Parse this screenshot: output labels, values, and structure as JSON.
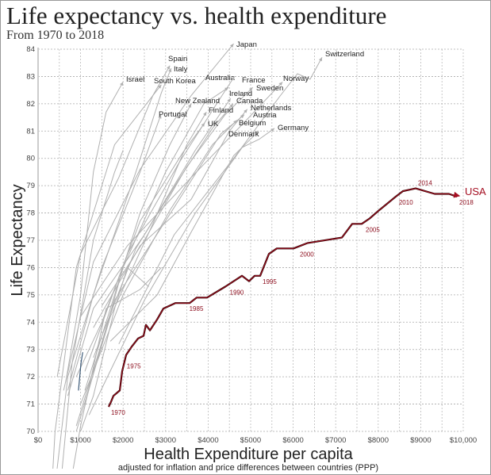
{
  "chart_data": {
    "type": "line",
    "title": "Life expectancy vs. health expenditure",
    "subtitle": "From 1970 to 2018",
    "xlabel": "Health Expenditure per capita",
    "xlabel_sub": "adjusted for inflation and price differences between countries (PPP)",
    "ylabel": "Life Expectancy",
    "xlim": [
      0,
      10000
    ],
    "ylim": [
      70,
      84
    ],
    "x_ticks": [
      "$0",
      "$1000",
      "$2000",
      "$3000",
      "$4000",
      "$5000",
      "$6000",
      "$7000",
      "$8000",
      "$9000",
      "$10,000"
    ],
    "y_ticks": [
      "70",
      "71",
      "72",
      "73",
      "74",
      "75",
      "76",
      "77",
      "78",
      "79",
      "80",
      "81",
      "82",
      "83",
      "84"
    ],
    "grid": true,
    "colors": {
      "highlight": "#a50f22",
      "others": "#b0b0b0",
      "blue": "#3c5a78"
    },
    "highlight": {
      "name": "USA",
      "points": [
        [
          1660,
          70.9
        ],
        [
          1720,
          71.1
        ],
        [
          1772,
          71.3
        ],
        [
          1922,
          71.5
        ],
        [
          1978,
          72.2
        ],
        [
          2071,
          72.8
        ],
        [
          2200,
          73.1
        ],
        [
          2351,
          73.4
        ],
        [
          2481,
          73.5
        ],
        [
          2537,
          73.9
        ],
        [
          2631,
          73.7
        ],
        [
          2800,
          74.1
        ],
        [
          2948,
          74.5
        ],
        [
          3228,
          74.7
        ],
        [
          3563,
          74.7
        ],
        [
          3731,
          74.9
        ],
        [
          3974,
          74.9
        ],
        [
          4403,
          75.3
        ],
        [
          4795,
          75.7
        ],
        [
          4963,
          75.5
        ],
        [
          5093,
          75.7
        ],
        [
          5224,
          75.7
        ],
        [
          5430,
          76.5
        ],
        [
          5616,
          76.7
        ],
        [
          6007,
          76.7
        ],
        [
          6343,
          76.9
        ],
        [
          7146,
          77.1
        ],
        [
          7388,
          77.6
        ],
        [
          7612,
          77.6
        ],
        [
          7799,
          77.8
        ],
        [
          8022,
          78.1
        ],
        [
          8414,
          78.6
        ],
        [
          8582,
          78.8
        ],
        [
          8881,
          78.9
        ],
        [
          9328,
          78.7
        ],
        [
          9664,
          78.7
        ],
        [
          9851,
          78.6
        ]
      ],
      "year_labels": [
        {
          "year": "1970",
          "x": 1660,
          "y": 70.9
        },
        {
          "year": "1975",
          "x": 2030,
          "y": 72.6
        },
        {
          "year": "1985",
          "x": 3500,
          "y": 74.7
        },
        {
          "year": "1990",
          "x": 4450,
          "y": 75.3
        },
        {
          "year": "1995",
          "x": 5224,
          "y": 75.7
        },
        {
          "year": "2000",
          "x": 6100,
          "y": 76.7
        },
        {
          "year": "2005",
          "x": 7650,
          "y": 77.6
        },
        {
          "year": "2010",
          "x": 8430,
          "y": 78.6
        },
        {
          "year": "2014",
          "x": 8881,
          "y": 78.9
        },
        {
          "year": "2018",
          "x": 9851,
          "y": 78.6
        }
      ]
    },
    "series": [
      {
        "name": "Japan",
        "points": [
          [
            600,
            71.5
          ],
          [
            1300,
            76.2
          ],
          [
            2400,
            79.6
          ],
          [
            3600,
            82.3
          ],
          [
            4600,
            84.2
          ]
        ]
      },
      {
        "name": "Switzerland",
        "points": [
          [
            1900,
            73.2
          ],
          [
            3200,
            77.2
          ],
          [
            4600,
            80.0
          ],
          [
            5700,
            82.3
          ],
          [
            6100,
            83.1
          ],
          [
            6400,
            82.9
          ],
          [
            6680,
            83.7
          ]
        ]
      },
      {
        "name": "Spain",
        "points": [
          [
            450,
            72.0
          ],
          [
            1000,
            76.5
          ],
          [
            1900,
            79.3
          ],
          [
            2700,
            82.3
          ],
          [
            3100,
            83.4
          ]
        ]
      },
      {
        "name": "Italy",
        "points": [
          [
            700,
            71.5
          ],
          [
            1300,
            75.0
          ],
          [
            2300,
            79.5
          ],
          [
            2900,
            82.4
          ],
          [
            3130,
            83.3
          ]
        ]
      },
      {
        "name": "Israel",
        "points": [
          [
            650,
            71.8
          ],
          [
            1000,
            75.0
          ],
          [
            1300,
            79.5
          ],
          [
            1600,
            81.7
          ],
          [
            2000,
            82.8
          ]
        ]
      },
      {
        "name": "South Korea",
        "points": [
          [
            100,
            62.0
          ],
          [
            400,
            70.0
          ],
          [
            900,
            76.0
          ],
          [
            1800,
            80.5
          ],
          [
            2900,
            82.7
          ]
        ]
      },
      {
        "name": "Australia",
        "points": [
          [
            1100,
            71.0
          ],
          [
            2000,
            76.0
          ],
          [
            3000,
            79.5
          ],
          [
            3900,
            82.0
          ],
          [
            4480,
            82.6
          ]
        ]
      },
      {
        "name": "France",
        "points": [
          [
            1100,
            72.2
          ],
          [
            2100,
            76.5
          ],
          [
            3300,
            79.8
          ],
          [
            4200,
            82.0
          ],
          [
            4620,
            83.0
          ]
        ]
      },
      {
        "name": "Norway",
        "points": [
          [
            1000,
            74.2
          ],
          [
            2100,
            76.8
          ],
          [
            3600,
            79.3
          ],
          [
            4900,
            81.4
          ],
          [
            5750,
            82.8
          ]
        ]
      },
      {
        "name": "Sweden",
        "points": [
          [
            1500,
            74.6
          ],
          [
            2500,
            77.0
          ],
          [
            3500,
            79.7
          ],
          [
            4400,
            81.6
          ],
          [
            5050,
            82.6
          ]
        ]
      },
      {
        "name": "Ireland",
        "points": [
          [
            700,
            71.3
          ],
          [
            1300,
            74.5
          ],
          [
            2500,
            77.2
          ],
          [
            3700,
            80.3
          ],
          [
            4530,
            82.2
          ]
        ]
      },
      {
        "name": "Canada",
        "points": [
          [
            1300,
            72.7
          ],
          [
            2300,
            76.7
          ],
          [
            3300,
            79.2
          ],
          [
            4100,
            81.1
          ],
          [
            4590,
            82.0
          ]
        ]
      },
      {
        "name": "Netherlands",
        "points": [
          [
            1300,
            73.8
          ],
          [
            2400,
            76.8
          ],
          [
            3600,
            78.5
          ],
          [
            4500,
            81.0
          ],
          [
            4920,
            81.8
          ]
        ]
      },
      {
        "name": "Austria",
        "points": [
          [
            900,
            70.2
          ],
          [
            1800,
            74.8
          ],
          [
            3200,
            78.2
          ],
          [
            4300,
            80.9
          ],
          [
            4850,
            81.6
          ]
        ]
      },
      {
        "name": "Belgium",
        "points": [
          [
            1000,
            71.0
          ],
          [
            2000,
            75.0
          ],
          [
            3100,
            78.1
          ],
          [
            4100,
            80.5
          ],
          [
            4680,
            81.4
          ]
        ]
      },
      {
        "name": "Denmark",
        "points": [
          [
            1700,
            73.3
          ],
          [
            2800,
            75.0
          ],
          [
            3600,
            77.3
          ],
          [
            4600,
            80.1
          ],
          [
            5190,
            81.0
          ]
        ]
      },
      {
        "name": "Germany",
        "points": [
          [
            1200,
            70.6
          ],
          [
            2500,
            74.8
          ],
          [
            3700,
            78.0
          ],
          [
            4800,
            80.4
          ],
          [
            5200,
            80.7
          ],
          [
            5560,
            81.1
          ]
        ]
      },
      {
        "name": "Finland",
        "points": [
          [
            900,
            70.0
          ],
          [
            1700,
            74.2
          ],
          [
            2700,
            77.6
          ],
          [
            3500,
            80.5
          ],
          [
            3960,
            81.7
          ]
        ]
      },
      {
        "name": "New Zealand",
        "points": [
          [
            1100,
            71.5
          ],
          [
            1700,
            74.5
          ],
          [
            2400,
            78.0
          ],
          [
            3100,
            80.5
          ],
          [
            3600,
            82.0
          ]
        ]
      },
      {
        "name": "Portugal",
        "points": [
          [
            250,
            66.0
          ],
          [
            700,
            72.0
          ],
          [
            1500,
            76.0
          ],
          [
            2400,
            79.5
          ],
          [
            2890,
            81.6
          ]
        ]
      },
      {
        "name": "UK",
        "points": [
          [
            900,
            72.0
          ],
          [
            1500,
            74.0
          ],
          [
            2400,
            77.7
          ],
          [
            3400,
            80.2
          ],
          [
            3920,
            81.3
          ]
        ]
      },
      {
        "name": "",
        "points": [
          [
            500,
            67.5
          ],
          [
            800,
            72.5
          ],
          [
            1300,
            77.0
          ],
          [
            1800,
            79.5
          ],
          [
            2000,
            80.3
          ]
        ]
      },
      {
        "name": "",
        "points": [
          [
            700,
            67.5
          ],
          [
            1000,
            70.2
          ],
          [
            1600,
            74.5
          ],
          [
            2400,
            75.2
          ],
          [
            2900,
            76.0
          ]
        ]
      },
      {
        "name": "",
        "points": [
          [
            1000,
            70.0
          ],
          [
            1300,
            71.3
          ],
          [
            1800,
            74.5
          ],
          [
            2100,
            76.0
          ],
          [
            2600,
            75.3
          ]
        ]
      }
    ],
    "blue_series": {
      "name": "",
      "points": [
        [
          950,
          71.5
        ],
        [
          1010,
          72.5
        ],
        [
          1050,
          72.9
        ]
      ]
    }
  }
}
